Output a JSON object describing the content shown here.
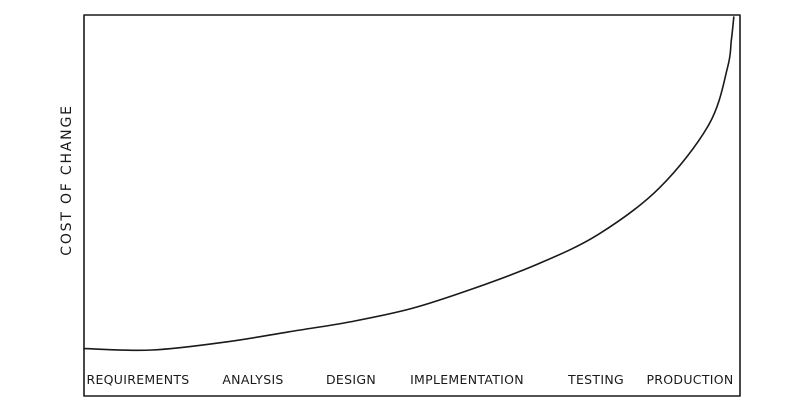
{
  "chart_data": {
    "type": "line",
    "title": "",
    "xlabel": "",
    "ylabel": "COST OF CHANGE",
    "categories": [
      "REQUIREMENTS",
      "ANALYSIS",
      "DESIGN",
      "IMPLEMENTATION",
      "TESTING",
      "PRODUCTION"
    ],
    "x": [
      0,
      1,
      2,
      3,
      4,
      5
    ],
    "xlim": [
      -0.15,
      5.15
    ],
    "ylim": [
      0,
      100
    ],
    "y_tick_labels_shown": false,
    "grid": false,
    "series": [
      {
        "name": "",
        "x": [
          -0.15,
          0.4,
          1.0,
          1.5,
          2.0,
          2.5,
          3.0,
          3.5,
          4.0,
          4.5,
          4.9,
          5.05,
          5.08,
          5.1
        ],
        "values": [
          1,
          0.6,
          3,
          6,
          9,
          13,
          19,
          26,
          35,
          49,
          68,
          85,
          93,
          100
        ]
      }
    ]
  }
}
